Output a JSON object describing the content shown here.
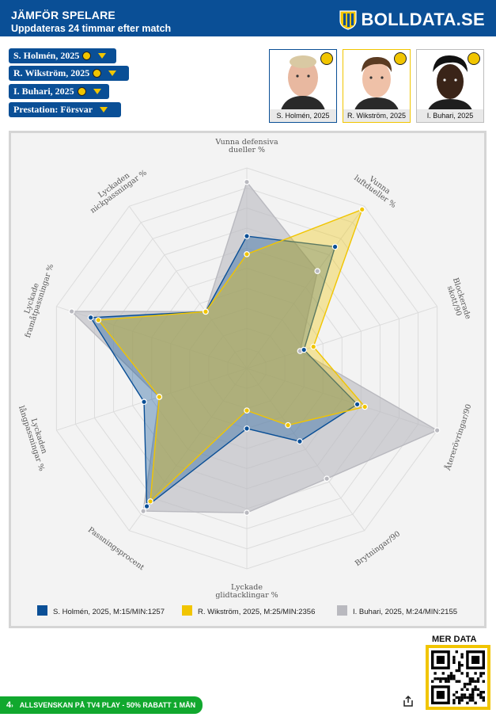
{
  "header": {
    "title": "JÄMFÖR SPELARE",
    "subtitle": "Uppdateras 24 timmar efter match",
    "brand": "BOLLDATA.SE"
  },
  "selectors": [
    {
      "label": "S. Holmén, 2025"
    },
    {
      "label": "R. Wikström, 2025"
    },
    {
      "label": "I. Buhari, 2025"
    },
    {
      "label": "Prestation: Försvar"
    }
  ],
  "players": [
    {
      "caption": "S. Holmén, 2025"
    },
    {
      "caption": "R. Wikström, 2025"
    },
    {
      "caption": "I. Buhari, 2025"
    }
  ],
  "chart_data": {
    "type": "radar",
    "axes": [
      [
        "Vunna defensiva",
        "dueller %"
      ],
      [
        "Vunna",
        "luftdueller %"
      ],
      [
        "Blockerade",
        "skott/90"
      ],
      [
        "Återerövringar/90"
      ],
      [
        "Brytningar/90"
      ],
      [
        "Lyckade",
        "glidtacklingar %"
      ],
      [
        "Passningsprocent"
      ],
      [
        "Lyckaden",
        "långpassningar %"
      ],
      [
        "Lyckade",
        "framåtpassningar %"
      ],
      [
        "Lyckaden",
        "nickpassningar %"
      ]
    ],
    "range": [
      0,
      1
    ],
    "rings": 10,
    "series": [
      {
        "name": "S. Holmén, 2025, M:15/MIN:1257",
        "color": "#0a4f96",
        "values": [
          0.66,
          0.75,
          0.3,
          0.58,
          0.45,
          0.3,
          0.85,
          0.54,
          0.82,
          0.35
        ]
      },
      {
        "name": "R. Wikström, 2025, M:25/MIN:2356",
        "color": "#f1c500",
        "values": [
          0.57,
          0.98,
          0.35,
          0.62,
          0.35,
          0.21,
          0.82,
          0.46,
          0.78,
          0.35
        ]
      },
      {
        "name": "I. Buhari, 2025, M:24/MIN:2155",
        "color": "#b9b9bf",
        "values": [
          0.93,
          0.6,
          0.28,
          1.0,
          0.68,
          0.72,
          0.88,
          0.46,
          0.92,
          0.35
        ]
      }
    ]
  },
  "qr_label": "MER DATA",
  "promo": "ALLSVENSKAN PÅ TV4 PLAY - 50% RABATT 1 MÅN"
}
